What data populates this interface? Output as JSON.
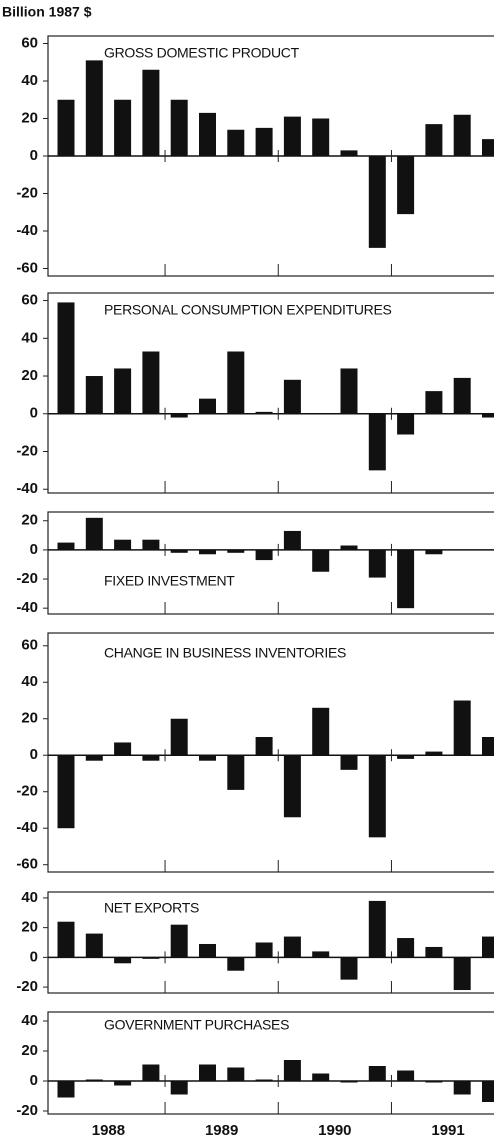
{
  "unit_label": "Billion 1987 $",
  "years": [
    "1988",
    "1989",
    "1990",
    "1991"
  ],
  "chart_data": [
    {
      "type": "bar",
      "title": "GROSS DOMESTIC PRODUCT",
      "color": "#111111",
      "values": [
        30,
        51,
        30,
        46,
        30,
        23,
        14,
        15,
        21,
        20,
        3,
        -49,
        -31,
        17,
        22,
        9
      ],
      "ylim": [
        -64,
        64
      ],
      "yticks": [
        60,
        40,
        20,
        0,
        -20,
        -40,
        -60
      ]
    },
    {
      "type": "bar",
      "title": "PERSONAL CONSUMPTION EXPENDITURES",
      "color": "#111111",
      "values": [
        59,
        20,
        24,
        33,
        -2,
        8,
        33,
        1,
        18,
        0,
        24,
        -30,
        -11,
        12,
        19,
        -2
      ],
      "ylim": [
        -42,
        64
      ],
      "yticks": [
        60,
        40,
        20,
        0,
        -20,
        -40
      ]
    },
    {
      "type": "bar",
      "title": "FIXED INVESTMENT",
      "color": "#111111",
      "values": [
        5,
        22,
        7,
        7,
        -2,
        -3,
        -2,
        -7,
        13,
        -15,
        3,
        -19,
        -40,
        -3,
        0,
        0
      ],
      "ylim": [
        -44,
        26
      ],
      "yticks": [
        20,
        0,
        -20,
        -40
      ]
    },
    {
      "type": "bar",
      "title": "CHANGE IN BUSINESS INVENTORIES",
      "color": "#111111",
      "values": [
        -40,
        -3,
        7,
        -3,
        20,
        -3,
        -19,
        10,
        -34,
        26,
        -8,
        -45,
        -2,
        2,
        30,
        10
      ],
      "ylim": [
        -64,
        67
      ],
      "yticks": [
        60,
        40,
        20,
        0,
        -20,
        -40,
        -60
      ]
    },
    {
      "type": "bar",
      "title": "NET EXPORTS",
      "color": "#111111",
      "values": [
        24,
        16,
        -4,
        -1,
        22,
        9,
        -9,
        10,
        14,
        4,
        -15,
        38,
        13,
        7,
        -22,
        14
      ],
      "ylim": [
        -24,
        44
      ],
      "yticks": [
        40,
        20,
        0,
        -20
      ]
    },
    {
      "type": "bar",
      "title": "GOVERNMENT PURCHASES",
      "color": "#111111",
      "values": [
        -11,
        1,
        -3,
        11,
        -9,
        11,
        9,
        1,
        14,
        5,
        -1,
        10,
        7,
        -1,
        -9,
        -14
      ],
      "ylim": [
        -22,
        46
      ],
      "yticks": [
        40,
        20,
        0,
        -20
      ]
    }
  ]
}
